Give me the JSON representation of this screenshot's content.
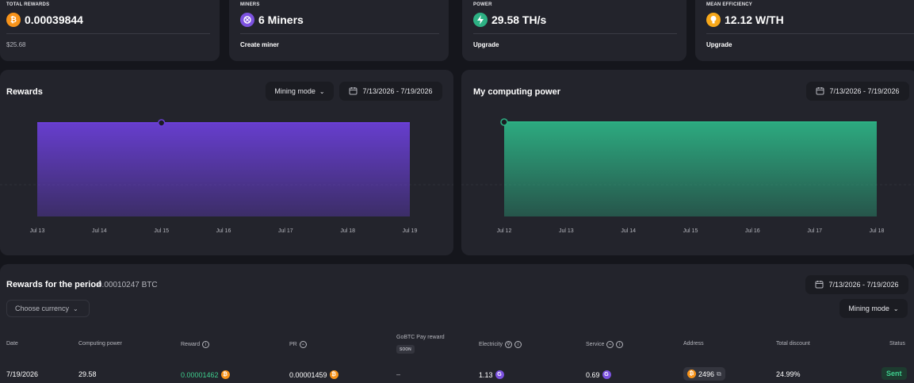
{
  "stats": {
    "total_rewards": {
      "label": "TOTAL REWARDS",
      "value": "0.00039844",
      "sub": "$25.68",
      "icon": "bitcoin-icon"
    },
    "miners": {
      "label": "MINERS",
      "value": "6 Miners",
      "link": "Create miner",
      "icon": "miner-icon"
    },
    "power": {
      "label": "POWER",
      "value": "29.58 TH/s",
      "link": "Upgrade",
      "icon": "lightning-icon"
    },
    "efficiency": {
      "label": "MEAN EFFICIENCY",
      "value": "12.12 W/TH",
      "link": "Upgrade",
      "icon": "bulb-icon"
    }
  },
  "rewards_panel": {
    "title": "Rewards",
    "mode_label": "Mining mode",
    "date_range": "7/13/2026 - 7/19/2026"
  },
  "power_panel": {
    "title": "My computing power",
    "date_range": "7/13/2026 - 7/19/2026"
  },
  "chart_data": [
    {
      "type": "area",
      "title": "Rewards",
      "x": [
        "Jul 13",
        "Jul 14",
        "Jul 15",
        "Jul 16",
        "Jul 17",
        "Jul 18",
        "Jul 19"
      ],
      "series": [
        {
          "values": [
            1,
            1,
            1,
            1,
            1,
            1,
            1
          ]
        }
      ],
      "highlight_index": 2,
      "color": "#6a3fd6",
      "grid": true
    },
    {
      "type": "area",
      "title": "My computing power",
      "x": [
        "Jul 12",
        "Jul 13",
        "Jul 14",
        "Jul 15",
        "Jul 16",
        "Jul 17",
        "Jul 18"
      ],
      "series": [
        {
          "values": [
            1,
            1,
            1,
            1,
            1,
            1,
            1
          ]
        }
      ],
      "highlight_index": 0,
      "color": "#2db184",
      "grid": true
    }
  ],
  "period": {
    "title": "Rewards for the period",
    "amount": "0.00010247 BTC",
    "date_range": "7/13/2026 - 7/19/2026",
    "currency_placeholder": "Choose currency",
    "mode_label": "Mining mode"
  },
  "table": {
    "headers": {
      "date": "Date",
      "computing_power": "Computing power",
      "reward": "Reward",
      "pr": "PR",
      "gobtc": "GoBTC Pay reward",
      "gobtc_badge": "SOON",
      "electricity": "Electricity",
      "service": "Service",
      "address": "Address",
      "discount": "Total discount",
      "status": "Status"
    },
    "rows": [
      {
        "date": "7/19/2026",
        "computing_power": "29.58",
        "reward": "0.00001462",
        "pr": "0.00001459",
        "gobtc": "–",
        "electricity": "1.13",
        "service": "0.69",
        "address": "2496",
        "discount": "24.99%",
        "status": "Sent"
      }
    ]
  },
  "colors": {
    "background": "#15161c",
    "card": "#23242c",
    "accent_purple": "#6a3fd6",
    "accent_green": "#2db184",
    "btc_orange": "#f7931a",
    "reward_green": "#3ecf8e"
  }
}
